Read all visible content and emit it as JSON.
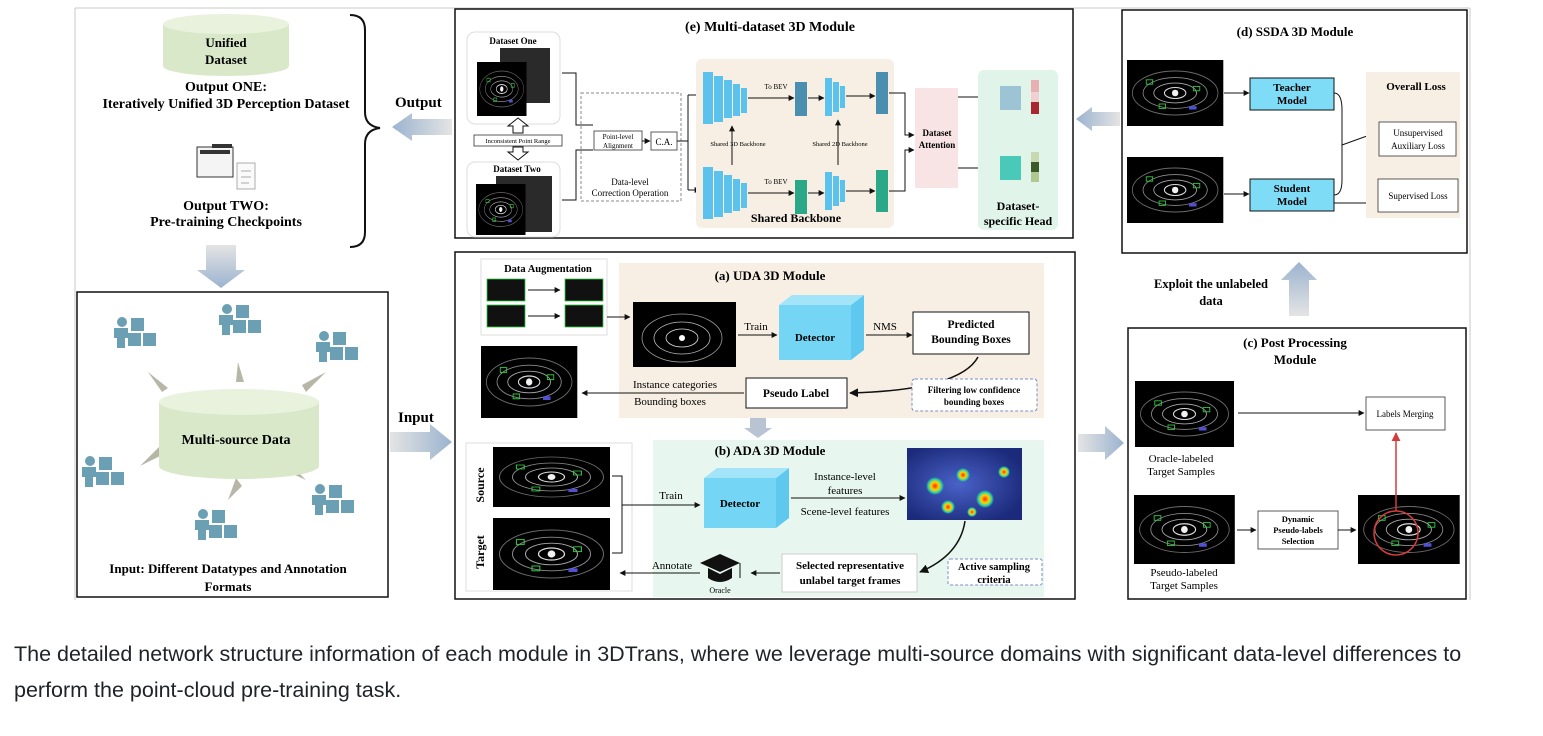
{
  "output_section": {
    "cylinder_label_line1": "Unified",
    "cylinder_label_line2": "Dataset",
    "output_one_title": "Output ONE:",
    "output_one_desc": "Iteratively Unified 3D Perception Dataset",
    "output_two_title": "Output TWO:",
    "output_two_desc": "Pre-training Checkpoints",
    "output_label": "Output"
  },
  "input_section": {
    "cylinder_label": "Multi-source Data",
    "caption_line1": "Input: Different Datatypes and Annotation",
    "caption_line2": "Formats",
    "input_label": "Input"
  },
  "module_e": {
    "title": "(e) Multi-dataset 3D Module",
    "dataset_one": "Dataset One",
    "dataset_two": "Dataset Two",
    "inconsistent_range": "Inconsistent Point Range",
    "point_level_line1": "Point-level",
    "point_level_line2": "Alignment",
    "ca": "C.A.",
    "data_level_line1": "Data-level",
    "data_level_line2": "Correction Operation",
    "to_bev_top": "To BEV",
    "to_bev_bottom": "To BEV",
    "shared_3d": "Shared 3D Backbone",
    "shared_2d": "Shared 2D Backbone",
    "shared_backbone": "Shared Backbone",
    "dataset_attention_line1": "Dataset",
    "dataset_attention_line2": "Attention",
    "head_line1": "Dataset-",
    "head_line2": "specific Head"
  },
  "module_d": {
    "title": "(d) SSDA 3D Module",
    "teacher_line1": "Teacher",
    "teacher_line2": "Model",
    "student_line1": "Student",
    "student_line2": "Model",
    "overall_loss": "Overall Loss",
    "unsup_line1": "Unsupervised",
    "unsup_line2": "Auxiliary Loss",
    "sup_loss": "Supervised Loss"
  },
  "exploit_line1": "Exploit the unlabeled",
  "exploit_line2": "data",
  "module_a": {
    "title": "(a) UDA 3D Module",
    "data_aug": "Data Augmentation",
    "train": "Train",
    "detector": "Detector",
    "nms": "NMS",
    "predicted_line1": "Predicted",
    "predicted_line2": "Bounding Boxes",
    "pseudo_label": "Pseudo Label",
    "instance_categories": "Instance categories",
    "bounding_boxes": "Bounding boxes",
    "filter_line1": "Filtering low confidence",
    "filter_line2": "bounding boxes"
  },
  "module_b": {
    "title": "(b) ADA 3D Module",
    "source": "Source",
    "target": "Target",
    "train": "Train",
    "detector": "Detector",
    "instance_line1": "Instance-level",
    "instance_line2": "features",
    "scene_level": "Scene-level features",
    "selected_line1": "Selected representative",
    "selected_line2": "unlabel target frames",
    "active_line1": "Active sampling",
    "active_line2": "criteria",
    "annotate": "Annotate",
    "oracle": "Oracle"
  },
  "module_c": {
    "title_line1": "(c) Post Processing",
    "title_line2": "Module",
    "labels_merging": "Labels Merging",
    "oracle_line1": "Oracle-labeled",
    "oracle_line2": "Target Samples",
    "dynamic_line1": "Dynamic",
    "dynamic_line2": "Pseudo-labels",
    "dynamic_line3": "Selection",
    "pseudo_line1": "Pseudo-labeled",
    "pseudo_line2": "Target Samples"
  },
  "caption": "The detailed network structure information of each module in 3DTrans, where we leverage multi-source domains with significant data-level differences to perform the point-cloud pre-training task.",
  "icons": [
    "unified-dataset-cylinder",
    "folder-icon",
    "document-icon",
    "person-with-boxes-icon",
    "graduation-cap-icon",
    "point-cloud-image",
    "heatmap-image"
  ],
  "colors": {
    "cylinder": "#d8e8c8",
    "detector": "#74d6f4",
    "teacher_student": "#7fdcf6",
    "blue_layers": "#5bc2ee",
    "teal_layers": "#2aa888",
    "beige_panel": "#f7efe4",
    "mint_panel": "#e7f6ef",
    "attention": "#f8e4e4",
    "person_icon": "#6b9fb3",
    "merge_arrow": "#d43b3b"
  }
}
